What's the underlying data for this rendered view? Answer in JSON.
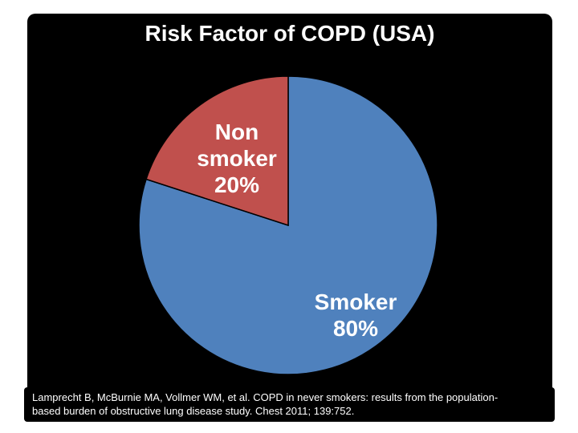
{
  "slide": {
    "title": "Risk Factor of COPD (USA)",
    "background_color": "#000000",
    "page_background_color": "#FFFFFF",
    "text_color": "#FFFFFF"
  },
  "chart_data": {
    "type": "pie",
    "title": "Risk Factor of COPD (USA)",
    "categories": [
      "Smoker",
      "Non smoker"
    ],
    "values": [
      80,
      20
    ],
    "colors": [
      "#4F81BD",
      "#C0504D"
    ],
    "start_angle_deg": 0,
    "direction": "clockwise",
    "legend": "none",
    "data_labels": "category name and percentage inside slices",
    "label_color": "#FFFFFF",
    "slice_outline_color": "#000000"
  },
  "slice_labels": {
    "non_smoker": {
      "line1": "Non",
      "line2": "smoker",
      "line3": "20%"
    },
    "smoker": {
      "line1": "Smoker",
      "line2": "80%"
    }
  },
  "citation": {
    "line1": "Lamprecht B, McBurnie MA, Vollmer WM, et al. COPD in never smokers: results from the population-",
    "line2": "based burden of obstructive lung disease study. Chest 2011; 139:752."
  }
}
